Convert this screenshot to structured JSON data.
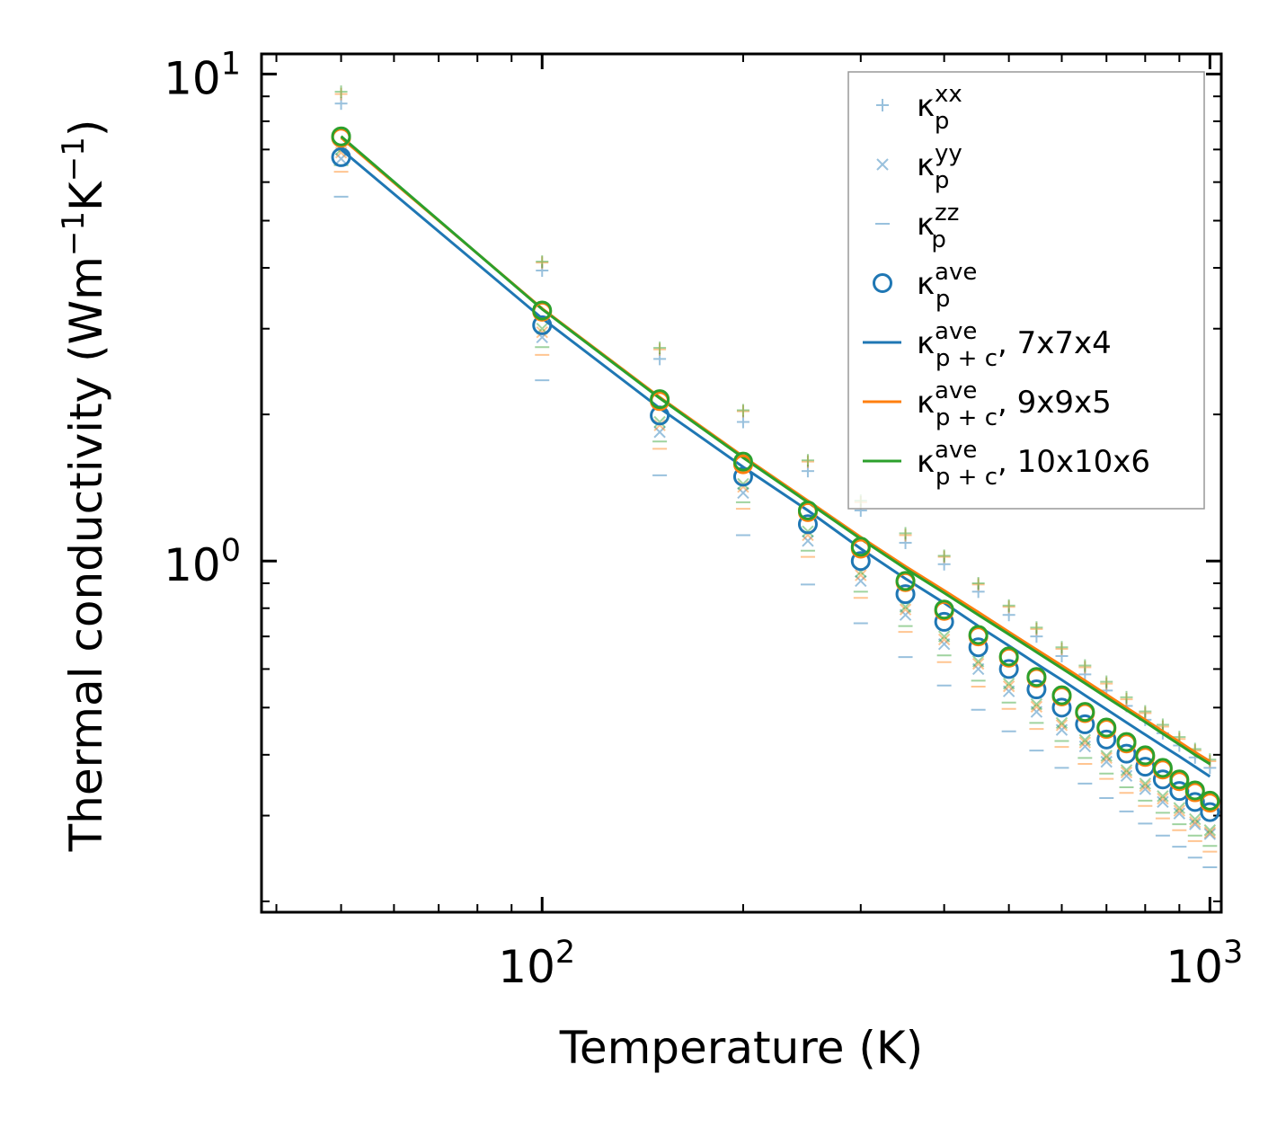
{
  "chart_data": {
    "type": "line",
    "title": "",
    "xlabel": "Temperature (K)",
    "ylabel_parts": [
      "Thermal conductivity (Wm",
      "−1",
      "K",
      "−1",
      ")"
    ],
    "xscale": "log",
    "yscale": "log",
    "xlim": [
      38,
      1040
    ],
    "ylim": [
      0.19,
      11
    ],
    "xticks": [
      {
        "base": "10",
        "exp": "2",
        "value": 100
      },
      {
        "base": "10",
        "exp": "3",
        "value": 1000
      }
    ],
    "yticks": [
      {
        "base": "10",
        "exp": "0",
        "value": 1
      },
      {
        "base": "10",
        "exp": "1",
        "value": 10
      }
    ],
    "x": [
      50,
      100,
      150,
      200,
      250,
      300,
      350,
      400,
      450,
      500,
      550,
      600,
      650,
      700,
      750,
      800,
      850,
      900,
      950,
      1000
    ],
    "colors": {
      "blue": "#1f77b4",
      "orange": "#ff7f0e",
      "green": "#2ca02c"
    },
    "series": [
      {
        "name": "kp_xx_7x7x4",
        "marker": "plus",
        "color": "#1f77b4",
        "alpha": 0.45,
        "values": [
          8.7,
          3.95,
          2.6,
          1.93,
          1.53,
          1.27,
          1.09,
          0.985,
          0.865,
          0.775,
          0.7,
          0.638,
          0.585,
          0.542,
          0.504,
          0.472,
          0.443,
          0.418,
          0.395,
          0.376
        ]
      },
      {
        "name": "kp_yy_7x7x4",
        "marker": "x",
        "color": "#1f77b4",
        "alpha": 0.45,
        "values": [
          6.7,
          2.88,
          1.84,
          1.38,
          1.1,
          0.91,
          0.775,
          0.675,
          0.6,
          0.54,
          0.49,
          0.45,
          0.416,
          0.387,
          0.362,
          0.34,
          0.32,
          0.303,
          0.288,
          0.275
        ]
      },
      {
        "name": "kp_zz_7x7x4",
        "marker": "hline",
        "color": "#1f77b4",
        "alpha": 0.45,
        "values": [
          5.6,
          2.35,
          1.5,
          1.13,
          0.895,
          0.745,
          0.635,
          0.555,
          0.495,
          0.447,
          0.408,
          0.376,
          0.349,
          0.326,
          0.306,
          0.289,
          0.273,
          0.259,
          0.246,
          0.235
        ]
      },
      {
        "name": "kp_xx_9x9x5",
        "marker": "plus",
        "color": "#ff7f0e",
        "alpha": 0.45,
        "values": [
          9.1,
          4.1,
          2.72,
          2.03,
          1.6,
          1.32,
          1.13,
          1.02,
          0.895,
          0.805,
          0.725,
          0.66,
          0.605,
          0.56,
          0.52,
          0.487,
          0.457,
          0.431,
          0.408,
          0.388
        ]
      },
      {
        "name": "kp_yy_9x9x5",
        "marker": "x",
        "color": "#ff7f0e",
        "alpha": 0.45,
        "values": [
          6.9,
          2.95,
          1.9,
          1.42,
          1.13,
          0.935,
          0.795,
          0.69,
          0.615,
          0.553,
          0.502,
          0.46,
          0.424,
          0.394,
          0.368,
          0.345,
          0.325,
          0.307,
          0.291,
          0.277
        ]
      },
      {
        "name": "kp_zz_9x9x5",
        "marker": "hline",
        "color": "#ff7f0e",
        "alpha": 0.45,
        "values": [
          6.3,
          2.65,
          1.7,
          1.28,
          1.02,
          0.84,
          0.715,
          0.62,
          0.552,
          0.497,
          0.452,
          0.415,
          0.383,
          0.357,
          0.334,
          0.314,
          0.296,
          0.28,
          0.266,
          0.253
        ]
      },
      {
        "name": "kp_xx_10x10x6",
        "marker": "plus",
        "color": "#2ca02c",
        "alpha": 0.45,
        "values": [
          9.2,
          4.12,
          2.74,
          2.04,
          1.61,
          1.33,
          1.14,
          1.025,
          0.9,
          0.81,
          0.73,
          0.665,
          0.61,
          0.565,
          0.525,
          0.491,
          0.461,
          0.435,
          0.411,
          0.391
        ]
      },
      {
        "name": "kp_yy_10x10x6",
        "marker": "x",
        "color": "#2ca02c",
        "alpha": 0.45,
        "values": [
          7.0,
          3.0,
          1.93,
          1.44,
          1.15,
          0.95,
          0.805,
          0.7,
          0.622,
          0.56,
          0.508,
          0.465,
          0.429,
          0.398,
          0.372,
          0.349,
          0.329,
          0.311,
          0.295,
          0.28
        ]
      },
      {
        "name": "kp_zz_10x10x6",
        "marker": "hline",
        "color": "#2ca02c",
        "alpha": 0.45,
        "values": [
          6.5,
          2.75,
          1.76,
          1.32,
          1.05,
          0.865,
          0.735,
          0.64,
          0.568,
          0.512,
          0.465,
          0.427,
          0.394,
          0.366,
          0.343,
          0.322,
          0.304,
          0.288,
          0.273,
          0.26
        ]
      },
      {
        "name": "kp_ave_7x7x4",
        "marker": "circle",
        "color": "#1f77b4",
        "alpha": 1,
        "values": [
          6.75,
          3.05,
          1.99,
          1.49,
          1.19,
          1.0,
          0.855,
          0.75,
          0.665,
          0.6,
          0.545,
          0.5,
          0.462,
          0.43,
          0.402,
          0.378,
          0.356,
          0.337,
          0.32,
          0.305
        ]
      },
      {
        "name": "kp_ave_9x9x5",
        "marker": "circle",
        "color": "#ff7f0e",
        "alpha": 1,
        "values": [
          7.4,
          3.25,
          2.13,
          1.58,
          1.26,
          1.06,
          0.905,
          0.79,
          0.7,
          0.633,
          0.575,
          0.527,
          0.487,
          0.452,
          0.422,
          0.396,
          0.373,
          0.353,
          0.335,
          0.319
        ]
      },
      {
        "name": "kp_ave_10x10x6",
        "marker": "circle",
        "color": "#2ca02c",
        "alpha": 1,
        "values": [
          7.45,
          3.27,
          2.15,
          1.6,
          1.27,
          1.07,
          0.91,
          0.795,
          0.705,
          0.637,
          0.578,
          0.53,
          0.49,
          0.455,
          0.425,
          0.399,
          0.376,
          0.356,
          0.338,
          0.322
        ]
      },
      {
        "name": "kpc_ave_7x7x4",
        "line": true,
        "color": "#1f77b4",
        "values": [
          7.0,
          3.15,
          2.06,
          1.56,
          1.27,
          1.06,
          0.92,
          0.82,
          0.735,
          0.67,
          0.615,
          0.57,
          0.53,
          0.496,
          0.466,
          0.44,
          0.417,
          0.397,
          0.378,
          0.361
        ]
      },
      {
        "name": "kpc_ave_9x9x5",
        "line": true,
        "color": "#ff7f0e",
        "values": [
          7.4,
          3.3,
          2.17,
          1.64,
          1.33,
          1.12,
          0.975,
          0.87,
          0.785,
          0.715,
          0.658,
          0.61,
          0.568,
          0.532,
          0.5,
          0.472,
          0.447,
          0.425,
          0.405,
          0.388
        ]
      },
      {
        "name": "kpc_ave_10x10x6",
        "line": true,
        "color": "#2ca02c",
        "values": [
          7.45,
          3.29,
          2.16,
          1.63,
          1.32,
          1.11,
          0.965,
          0.86,
          0.775,
          0.707,
          0.65,
          0.602,
          0.561,
          0.525,
          0.494,
          0.467,
          0.442,
          0.42,
          0.4,
          0.383
        ]
      }
    ],
    "legend": {
      "placement": "top-right",
      "entries": [
        {
          "symbol": "κ",
          "sub": "p",
          "sup": "xx",
          "suffix": "",
          "marker": "plus",
          "color": "#1f77b4"
        },
        {
          "symbol": "κ",
          "sub": "p",
          "sup": "yy",
          "suffix": "",
          "marker": "x",
          "color": "#1f77b4"
        },
        {
          "symbol": "κ",
          "sub": "p",
          "sup": "zz",
          "suffix": "",
          "marker": "hline",
          "color": "#1f77b4"
        },
        {
          "symbol": "κ",
          "sub": "p",
          "sup": "ave",
          "suffix": "",
          "marker": "circle",
          "color": "#1f77b4"
        },
        {
          "symbol": "κ",
          "sub": "p + c",
          "sup": "ave",
          "suffix": ", 7x7x4",
          "marker": "line",
          "color": "#1f77b4"
        },
        {
          "symbol": "κ",
          "sub": "p + c",
          "sup": "ave",
          "suffix": ", 9x9x5",
          "marker": "line",
          "color": "#ff7f0e"
        },
        {
          "symbol": "κ",
          "sub": "p + c",
          "sup": "ave",
          "suffix": ", 10x10x6",
          "marker": "line",
          "color": "#2ca02c"
        }
      ]
    }
  }
}
